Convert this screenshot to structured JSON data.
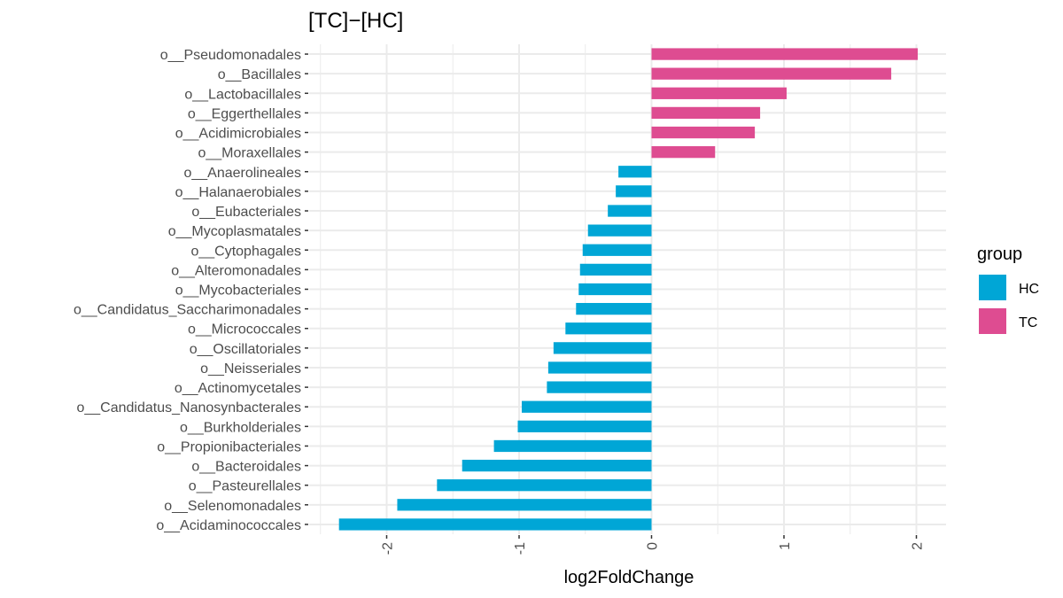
{
  "chart_data": {
    "type": "bar",
    "orientation": "horizontal",
    "title": "[TC]−[HC]",
    "xlabel": "log2FoldChange",
    "ylabel": "",
    "xlim": [
      -2.5,
      2.25
    ],
    "x_ticks": [
      -2,
      -1,
      0,
      1,
      2
    ],
    "x_tick_labels": [
      "-2",
      "-1",
      "0",
      "1",
      "2"
    ],
    "grid": true,
    "legend": {
      "title": "group",
      "position": "right",
      "entries": [
        {
          "label": "HC",
          "color": "#00A6D6"
        },
        {
          "label": "TC",
          "color": "#DE4C91"
        }
      ]
    },
    "categories": [
      "o__Pseudomonadales",
      "o__Bacillales",
      "o__Lactobacillales",
      "o__Eggerthellales",
      "o__Acidimicrobiales",
      "o__Moraxellales",
      "o__Anaerolineales",
      "o__Halanaerobiales",
      "o__Eubacteriales",
      "o__Mycoplasmatales",
      "o__Cytophagales",
      "o__Alteromonadales",
      "o__Mycobacteriales",
      "o__Candidatus_Saccharimonadales",
      "o__Micrococcales",
      "o__Oscillatoriales",
      "o__Neisseriales",
      "o__Actinomycetales",
      "o__Candidatus_Nanosynbacterales",
      "o__Burkholderiales",
      "o__Propionibacteriales",
      "o__Bacteroidales",
      "o__Pasteurellales",
      "o__Selenomonadales",
      "o__Acidaminococcales"
    ],
    "values": [
      2.01,
      1.81,
      1.02,
      0.82,
      0.78,
      0.48,
      -0.25,
      -0.27,
      -0.33,
      -0.48,
      -0.52,
      -0.54,
      -0.55,
      -0.57,
      -0.65,
      -0.74,
      -0.78,
      -0.79,
      -0.98,
      -1.01,
      -1.19,
      -1.43,
      -1.62,
      -1.92,
      -2.36
    ],
    "groups": [
      "TC",
      "TC",
      "TC",
      "TC",
      "TC",
      "TC",
      "HC",
      "HC",
      "HC",
      "HC",
      "HC",
      "HC",
      "HC",
      "HC",
      "HC",
      "HC",
      "HC",
      "HC",
      "HC",
      "HC",
      "HC",
      "HC",
      "HC",
      "HC",
      "HC"
    ]
  }
}
